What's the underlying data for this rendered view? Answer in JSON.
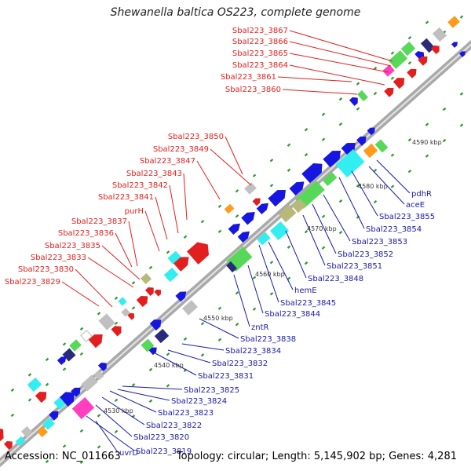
{
  "title": "Shewanella baltica OS223, complete genome",
  "footer": {
    "accession": "Accession: NC_011663",
    "info": "Topology: circular; Length: 5,145,902 bp; Genes: 4,281"
  },
  "colors": {
    "red": "#e21f1f",
    "blue": "#1616e0",
    "gray": "#c0c0c0",
    "cyan": "#33eef0",
    "green": "#58d858",
    "magenta": "#ff3fbf",
    "orange": "#ff9a1a",
    "olive": "#b8b87a",
    "navy": "#2a2a7a",
    "backbone": "#a9a9a9",
    "tick": "#2a9a2a",
    "red_label": "#e21f1f",
    "blue_label": "#1a1aa6"
  },
  "ruler_labels": [
    {
      "id": "kbp-4530",
      "text": "4530 kbp"
    },
    {
      "id": "kbp-4540",
      "text": "4540 kbp"
    },
    {
      "id": "kbp-4550",
      "text": "4550 kbp"
    },
    {
      "id": "kbp-4560",
      "text": "4560 kbp"
    },
    {
      "id": "kbp-4570",
      "text": "4570 kbp"
    },
    {
      "id": "kbp-4580",
      "text": "4580 kbp"
    },
    {
      "id": "kbp-4590",
      "text": "4590 kbp"
    }
  ],
  "red_labels": [
    "Sbal223_3867",
    "Sbal223_3866",
    "Sbal223_3865",
    "Sbal223_3864",
    "Sbal223_3861",
    "Sbal223_3860",
    "Sbal223_3850",
    "Sbal223_3849",
    "Sbal223_3847",
    "Sbal223_3843",
    "Sbal223_3842",
    "Sbal223_3841",
    "purH",
    "Sbal223_3837",
    "Sbal223_3836",
    "Sbal223_3835",
    "Sbal223_3833",
    "Sbal223_3830",
    "Sbal223_3829"
  ],
  "blue_labels": [
    "pdhR",
    "aceE",
    "Sbal223_3855",
    "Sbal223_3854",
    "Sbal223_3853",
    "Sbal223_3852",
    "Sbal223_3851",
    "Sbal223_3848",
    "hemE",
    "Sbal223_3845",
    "Sbal223_3844",
    "zntR",
    "Sbal223_3838",
    "Sbal223_3834",
    "Sbal223_3832",
    "Sbal223_3831",
    "Sbal223_3825",
    "Sbal223_3824",
    "Sbal223_3823",
    "Sbal223_3822",
    "Sbal223_3820",
    "Sbal223_3819",
    "uvrD"
  ]
}
